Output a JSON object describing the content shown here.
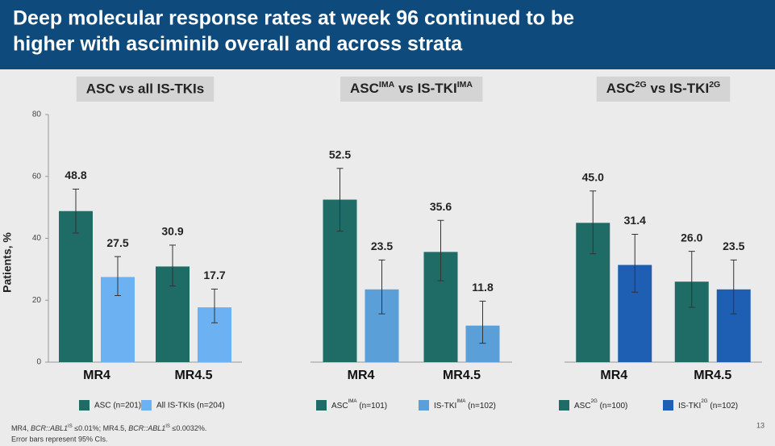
{
  "header": {
    "title_lines": [
      "Deep molecular response rates at week 96 continued to be",
      "higher with asciminib overall and across strata"
    ]
  },
  "chart_data": [
    {
      "type": "bar",
      "title": "ASC vs all IS-TKIs",
      "y_label": "Patients, %",
      "ylim": [
        0,
        80
      ],
      "yticks": [
        0,
        20,
        40,
        60,
        80
      ],
      "categories": [
        "MR4",
        "MR4.5"
      ],
      "series": [
        {
          "name": "ASC (n=201)",
          "color": "#1f6b66",
          "values": [
            48.8,
            30.9
          ],
          "value_labels": [
            "48.8",
            "30.9"
          ],
          "ci_low": [
            41.7,
            24.6
          ],
          "ci_high": [
            55.9,
            37.8
          ]
        },
        {
          "name": "All IS-TKIs (n=204)",
          "color": "#6cb2f2",
          "values": [
            27.5,
            17.7
          ],
          "value_labels": [
            "27.5",
            "17.7"
          ],
          "ci_low": [
            21.5,
            12.7
          ],
          "ci_high": [
            34.1,
            23.6
          ]
        }
      ]
    },
    {
      "type": "bar",
      "title": [
        "ASC",
        "IMA",
        " vs IS-TKI",
        "IMA"
      ],
      "ylim": [
        0,
        80
      ],
      "categories": [
        "MR4",
        "MR4.5"
      ],
      "series": [
        {
          "name": [
            "ASC",
            "IMA",
            " (n=101)"
          ],
          "color": "#1f6b66",
          "values": [
            52.5,
            35.6
          ],
          "value_labels": [
            "52.5",
            "35.6"
          ],
          "ci_low": [
            42.3,
            26.3
          ],
          "ci_high": [
            62.6,
            45.8
          ]
        },
        {
          "name": [
            "IS-TKI",
            "IMA",
            " (n=102)"
          ],
          "color": "#5a9fd8",
          "values": [
            23.5,
            11.8
          ],
          "value_labels": [
            "23.5",
            "11.8"
          ],
          "ci_low": [
            15.6,
            6.1
          ],
          "ci_high": [
            33.0,
            19.7
          ]
        }
      ]
    },
    {
      "type": "bar",
      "title": [
        "ASC",
        "2G",
        " vs IS-TKI",
        "2G"
      ],
      "ylim": [
        0,
        80
      ],
      "categories": [
        "MR4",
        "MR4.5"
      ],
      "series": [
        {
          "name": [
            "ASC",
            "2G",
            " (n=100)"
          ],
          "color": "#1f6b66",
          "values": [
            45.0,
            26.0
          ],
          "value_labels": [
            "45.0",
            "26.0"
          ],
          "ci_low": [
            35.0,
            17.7
          ],
          "ci_high": [
            55.3,
            35.8
          ]
        },
        {
          "name": [
            "IS-TKI",
            "2G",
            " (n=102)"
          ],
          "color": "#1f5fb3",
          "values": [
            31.4,
            23.5
          ],
          "value_labels": [
            "31.4",
            "23.5"
          ],
          "ci_low": [
            22.6,
            15.6
          ],
          "ci_high": [
            41.3,
            33.0
          ]
        }
      ]
    }
  ],
  "footnote": [
    [
      "MR4, ",
      "BCR::ABL1",
      "IS",
      " ≤0.01%; MR4.5, ",
      "BCR::ABL1",
      "IS",
      " ≤0.0032%."
    ],
    [
      "Error bars represent 95% CIs."
    ]
  ],
  "page_number": "13"
}
